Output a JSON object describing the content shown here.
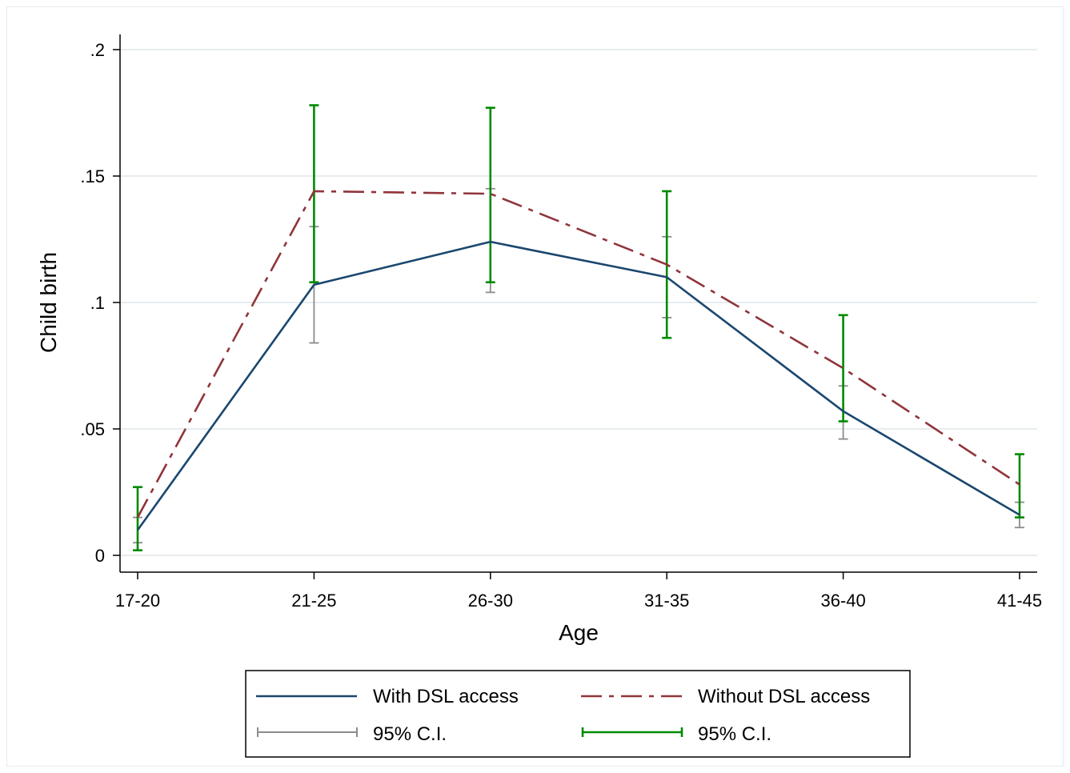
{
  "chart_data": {
    "type": "line",
    "xlabel": "Age",
    "ylabel": "Child birth",
    "categories": [
      "17-20",
      "21-25",
      "26-30",
      "31-35",
      "36-40",
      "41-45"
    ],
    "ylim": [
      0,
      0.2
    ],
    "yticks": [
      0,
      0.05,
      0.1,
      0.15,
      0.2
    ],
    "ytick_labels": [
      "0",
      ".05",
      ".1",
      ".15",
      ".2"
    ],
    "grid": true,
    "legend_position": "bottom",
    "series": [
      {
        "name": "With DSL access",
        "color": "#1a476f",
        "style": "solid",
        "values": [
          0.01,
          0.107,
          0.124,
          0.11,
          0.057,
          0.016
        ],
        "ci_low": [
          0.005,
          0.084,
          0.104,
          0.094,
          0.046,
          0.011
        ],
        "ci_high": [
          0.015,
          0.13,
          0.145,
          0.126,
          0.067,
          0.021
        ],
        "ci_label": "95% C.I.",
        "ci_color": "#8c8c8c"
      },
      {
        "name": "Without DSL access",
        "color": "#90353b",
        "style": "dashed",
        "values": [
          0.015,
          0.144,
          0.143,
          0.115,
          0.074,
          0.028
        ],
        "ci_low": [
          0.002,
          0.108,
          0.108,
          0.086,
          0.053,
          0.015
        ],
        "ci_high": [
          0.027,
          0.178,
          0.177,
          0.144,
          0.095,
          0.04
        ],
        "ci_label": "95% C.I.",
        "ci_color": "#008a00"
      }
    ]
  }
}
